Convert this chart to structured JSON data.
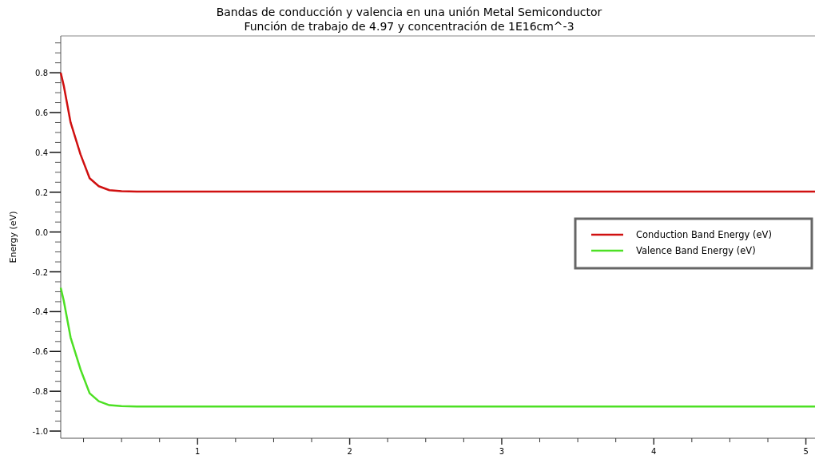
{
  "chart_data": {
    "type": "line",
    "title": "Bandas de conducción y valencia en una unión Metal Semiconductor",
    "subtitle": "Función de trabajo de 4.97 y concentración de 1E16cm^-3",
    "ylabel": "Energy (eV)",
    "x": [
      0.1,
      0.12,
      0.165,
      0.23,
      0.29,
      0.35,
      0.42,
      0.5,
      0.6,
      5.06
    ],
    "series": [
      {
        "name": "Conduction Band Energy (eV)",
        "color": "#d01010",
        "values": [
          0.8,
          0.735,
          0.55,
          0.39,
          0.27,
          0.23,
          0.21,
          0.205,
          0.203,
          0.203
        ]
      },
      {
        "name": "Valence Band Energy (eV)",
        "color": "#4de024",
        "values": [
          -0.28,
          -0.345,
          -0.53,
          -0.69,
          -0.81,
          -0.85,
          -0.87,
          -0.875,
          -0.877,
          -0.877
        ]
      }
    ],
    "xlim": [
      0.1,
      5.06
    ],
    "xticks": [
      {
        "value": 0.25,
        "label": null
      },
      {
        "value": 0.5,
        "label": null
      },
      {
        "value": 0.75,
        "label": null
      },
      1,
      {
        "value": 1.25,
        "label": null
      },
      {
        "value": 1.5,
        "label": null
      },
      {
        "value": 1.75,
        "label": null
      },
      2,
      {
        "value": 2.25,
        "label": null
      },
      {
        "value": 2.5,
        "label": null
      },
      {
        "value": 2.75,
        "label": null
      },
      3,
      {
        "value": 3.25,
        "label": null
      },
      {
        "value": 3.5,
        "label": null
      },
      {
        "value": 3.75,
        "label": null
      },
      4,
      {
        "value": 4.25,
        "label": null
      },
      {
        "value": 4.5,
        "label": null
      },
      {
        "value": 4.75,
        "label": null
      },
      5
    ],
    "ylim": [
      -1.036,
      0.985
    ],
    "yticks": [
      {
        "value": -1,
        "label": "-1.0"
      },
      {
        "value": -0.95,
        "label": null
      },
      {
        "value": -0.9,
        "label": null
      },
      {
        "value": -0.85,
        "label": null
      },
      -0.8,
      {
        "value": -0.75,
        "label": null
      },
      {
        "value": -0.7,
        "label": null
      },
      {
        "value": -0.65,
        "label": null
      },
      -0.6,
      {
        "value": -0.55,
        "label": null
      },
      {
        "value": -0.5,
        "label": null
      },
      {
        "value": -0.45,
        "label": null
      },
      -0.4,
      {
        "value": -0.35,
        "label": null
      },
      {
        "value": -0.3,
        "label": null
      },
      {
        "value": -0.25,
        "label": null
      },
      -0.2,
      {
        "value": -0.15,
        "label": null
      },
      {
        "value": -0.1,
        "label": null
      },
      {
        "value": -0.05,
        "label": null
      },
      {
        "value": 0,
        "label": "0.0"
      },
      {
        "value": 0.05,
        "label": null
      },
      {
        "value": 0.1,
        "label": null
      },
      {
        "value": 0.15,
        "label": null
      },
      0.2,
      {
        "value": 0.25,
        "label": null
      },
      {
        "value": 0.3,
        "label": null
      },
      {
        "value": 0.35,
        "label": null
      },
      0.4,
      {
        "value": 0.45,
        "label": null
      },
      {
        "value": 0.5,
        "label": null
      },
      {
        "value": 0.55,
        "label": null
      },
      0.6,
      {
        "value": 0.65,
        "label": null
      },
      {
        "value": 0.7,
        "label": null
      },
      {
        "value": 0.75,
        "label": null
      },
      0.8,
      {
        "value": 0.85,
        "label": null
      },
      {
        "value": 0.9,
        "label": null
      },
      {
        "value": 0.95,
        "label": null
      }
    ],
    "legend": "right",
    "grid": false,
    "marker": "none",
    "line_style": "solid"
  }
}
